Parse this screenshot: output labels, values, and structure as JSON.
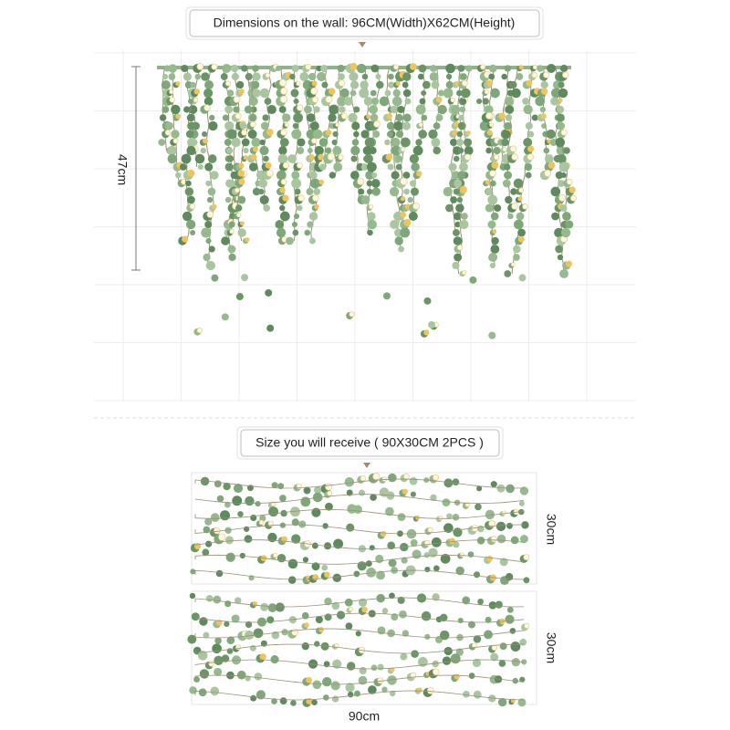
{
  "header": {
    "title": "Dimensions on the wall: 96CM(Width)X62CM(Height)",
    "height_label": "47cm"
  },
  "package": {
    "title": "Size you will receive ( 90X30CM 2PCS )",
    "panels": [
      {
        "height_label": "30cm"
      },
      {
        "height_label": "30cm"
      }
    ],
    "width_label": "90cm"
  }
}
